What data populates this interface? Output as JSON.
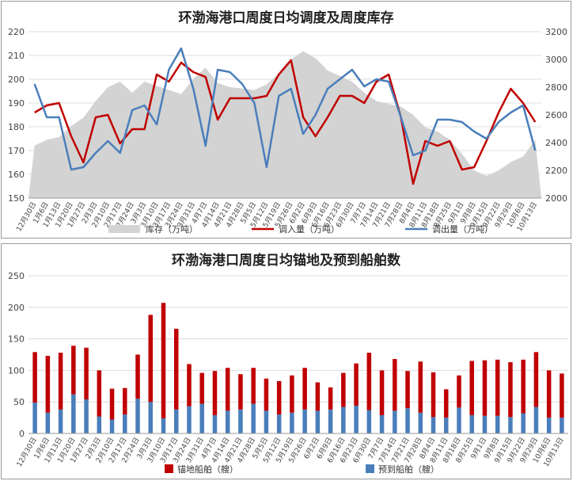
{
  "chart_data": [
    {
      "type": "area+line",
      "title": "环渤海港口周度日均调度及周度库存",
      "x": [
        "12月30日",
        "1月6日",
        "1月13日",
        "1月20日",
        "1月27日",
        "2月3日",
        "2月10日",
        "2月17日",
        "2月24日",
        "3月3日",
        "3月10日",
        "3月17日",
        "3月24日",
        "3月31日",
        "4月7日",
        "4月14日",
        "4月21日",
        "4月28日",
        "5月5日",
        "5月12日",
        "5月19日",
        "5月26日",
        "6月2日",
        "6月9日",
        "6月16日",
        "6月23日",
        "6月30日",
        "7月7日",
        "7月14日",
        "7月21日",
        "7月28日",
        "8月4日",
        "8月11日",
        "8月18日",
        "8月25日",
        "9月1日",
        "9月8日",
        "9月15日",
        "9月22日",
        "9月29日",
        "10月6日",
        "10月13日"
      ],
      "left_axis": {
        "min": 150,
        "max": 220,
        "ticks": [
          150,
          160,
          170,
          180,
          190,
          200,
          210,
          220
        ]
      },
      "right_axis": {
        "min": 2000,
        "max": 3200,
        "ticks": [
          2000,
          2200,
          2400,
          2600,
          2800,
          3000,
          3200
        ]
      },
      "series": [
        {
          "name": "库存（万吨）",
          "axis": "right",
          "color": "#d3d3d3",
          "values": [
            2380,
            2420,
            2440,
            2520,
            2580,
            2700,
            2800,
            2840,
            2760,
            2840,
            2810,
            2780,
            2750,
            2860,
            2940,
            2830,
            2800,
            2790,
            2780,
            2820,
            2900,
            3000,
            3060,
            3010,
            2920,
            2880,
            2840,
            2760,
            2700,
            2680,
            2660,
            2600,
            2510,
            2480,
            2420,
            2320,
            2200,
            2160,
            2200,
            2260,
            2300,
            2420
          ]
        },
        {
          "name": "调入量（万吨）",
          "axis": "left",
          "color": "#c00000",
          "values": [
            186,
            189,
            190,
            176,
            165,
            184,
            185,
            173,
            179,
            179,
            202,
            199,
            207,
            203,
            201,
            183,
            192,
            192,
            192,
            193,
            202,
            208,
            184,
            176,
            184,
            193,
            193,
            190,
            199,
            202,
            184,
            156,
            174,
            172,
            174,
            162,
            163,
            174,
            186,
            196,
            190,
            182
          ]
        },
        {
          "name": "调出量（万吨）",
          "axis": "left",
          "color": "#4a7ebb",
          "values": [
            198,
            184,
            184,
            162,
            163,
            169,
            174,
            169,
            187,
            189,
            181,
            204,
            213,
            196,
            172,
            204,
            203,
            198,
            190,
            163,
            193,
            196,
            177,
            185,
            196,
            200,
            204,
            197,
            200,
            199,
            184,
            168,
            170,
            183,
            183,
            182,
            178,
            175,
            182,
            186,
            189,
            170
          ]
        }
      ],
      "legend": "bottom"
    },
    {
      "type": "bar",
      "stacked": true,
      "title": "环渤海港口周度日均锚地及预到船舶数",
      "x": [
        "12月30日",
        "1月6日",
        "1月13日",
        "1月20日",
        "1月27日",
        "2月3日",
        "2月10日",
        "2月17日",
        "2月24日",
        "3月3日",
        "3月10日",
        "3月17日",
        "3月24日",
        "3月31日",
        "4月7日",
        "4月14日",
        "4月21日",
        "4月28日",
        "5月5日",
        "5月12日",
        "5月19日",
        "5月26日",
        "6月2日",
        "6月9日",
        "6月16日",
        "6月23日",
        "6月30日",
        "7月7日",
        "7月14日",
        "7月21日",
        "7月28日",
        "8月4日",
        "8月11日",
        "8月18日",
        "8月25日",
        "9月1日",
        "9月8日",
        "9月15日",
        "9月22日",
        "9月29日",
        "10月6日",
        "10月13日"
      ],
      "y_axis": {
        "min": 0,
        "max": 250,
        "ticks": [
          0,
          50,
          100,
          150,
          200,
          250
        ]
      },
      "series": [
        {
          "name": "预到船舶（艘）",
          "color": "#4a7ebb",
          "values": [
            49,
            33,
            38,
            62,
            54,
            27,
            22,
            30,
            55,
            50,
            24,
            38,
            43,
            47,
            29,
            36,
            38,
            47,
            36,
            30,
            33,
            38,
            36,
            38,
            42,
            44,
            37,
            29,
            36,
            40,
            33,
            26,
            25,
            41,
            29,
            28,
            28,
            26,
            32,
            42,
            25,
            25
          ]
        },
        {
          "name": "锚地船舶（艘）",
          "color": "#c00000",
          "values": [
            80,
            90,
            90,
            77,
            82,
            73,
            49,
            42,
            70,
            138,
            183,
            128,
            67,
            49,
            70,
            68,
            56,
            57,
            51,
            53,
            59,
            66,
            45,
            35,
            54,
            67,
            91,
            71,
            82,
            59,
            81,
            71,
            45,
            51,
            86,
            88,
            89,
            87,
            85,
            87,
            75,
            70
          ]
        }
      ],
      "legend": "bottom"
    }
  ]
}
